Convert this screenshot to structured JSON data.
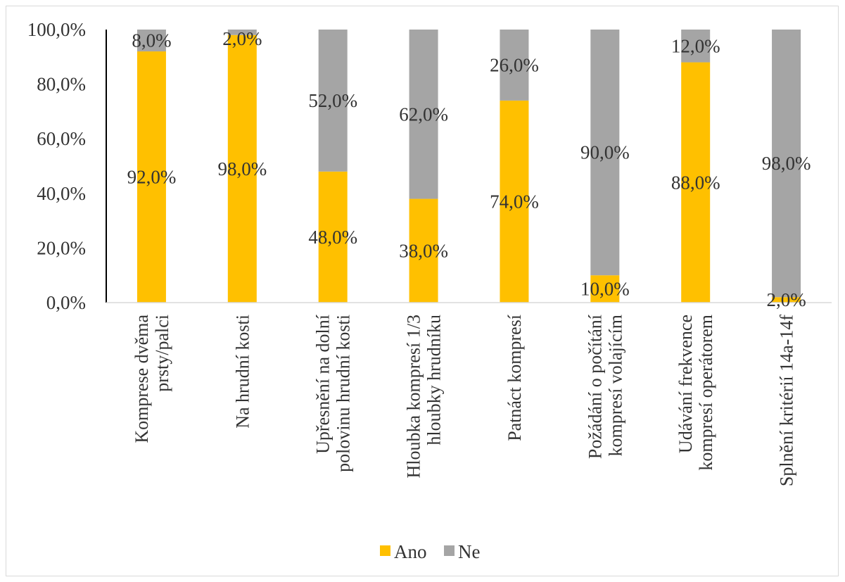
{
  "chart_data": {
    "type": "bar",
    "stacked": true,
    "percent_stacked": true,
    "title": "",
    "xlabel": "",
    "ylabel": "",
    "ylim": [
      0,
      100
    ],
    "y_ticks": [
      0,
      20,
      40,
      60,
      80,
      100
    ],
    "y_tick_labels": [
      "0,0%",
      "20,0%",
      "40,0%",
      "60,0%",
      "80,0%",
      "100,0%"
    ],
    "grid": false,
    "legend_position": "bottom",
    "categories": [
      [
        "Komprese dvěma",
        "prsty/palci"
      ],
      [
        "Na hrudní kosti"
      ],
      [
        "Upřesnění na dolní",
        "polovinu hrudní kosti"
      ],
      [
        "Hloubka kompresí 1/3",
        "hloubky hrudníku"
      ],
      [
        "Patnáct kompresí"
      ],
      [
        "Požádání o počítání",
        "kompresí volajícím"
      ],
      [
        "Udávání frekvence",
        "kompresí operátorem"
      ],
      [
        "Splnění kritérií 14a-14f"
      ]
    ],
    "series": [
      {
        "name": "Ano",
        "color": "#FFC000",
        "values": [
          92.0,
          98.0,
          48.0,
          38.0,
          74.0,
          10.0,
          88.0,
          2.0
        ],
        "labels": [
          "92,0%",
          "98,0%",
          "48,0%",
          "38,0%",
          "74,0%",
          "10,0%",
          "88,0%",
          "2,0%"
        ]
      },
      {
        "name": "Ne",
        "color": "#A5A5A5",
        "values": [
          8.0,
          2.0,
          52.0,
          62.0,
          26.0,
          90.0,
          12.0,
          98.0
        ],
        "labels": [
          "8,0%",
          "2,0%",
          "52,0%",
          "62,0%",
          "26,0%",
          "90,0%",
          "12,0%",
          "98,0%"
        ]
      }
    ]
  }
}
